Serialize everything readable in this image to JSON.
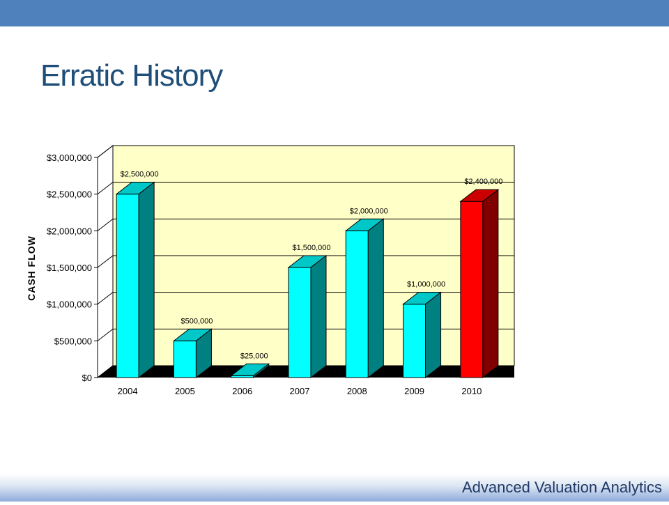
{
  "slide": {
    "title": "Erratic History",
    "footer": "Advanced Valuation Analytics"
  },
  "colors": {
    "header_bar": "#4f81bd",
    "plot_background": "#ffffc8",
    "bar_face": "#00ffff",
    "bar_side": "#008080",
    "highlight_face": "#ff0000",
    "highlight_side": "#800000",
    "floor": "#000000"
  },
  "chart_data": {
    "type": "bar",
    "title": "",
    "xlabel": "",
    "ylabel": "CASH FLOW",
    "categories": [
      "2004",
      "2005",
      "2006",
      "2007",
      "2008",
      "2009",
      "2010"
    ],
    "values": [
      2500000,
      500000,
      25000,
      1500000,
      2000000,
      1000000,
      2400000
    ],
    "data_labels": [
      "$2,500,000",
      "$500,000",
      "$25,000",
      "$1,500,000",
      "$2,000,000",
      "$1,000,000",
      "$2,400,000"
    ],
    "highlight_category": "2010",
    "ylim": [
      0,
      3000000
    ],
    "y_ticks": [
      0,
      500000,
      1000000,
      1500000,
      2000000,
      2500000,
      3000000
    ],
    "y_tick_labels": [
      "$0",
      "$500,000",
      "$1,000,000",
      "$1,500,000",
      "$2,000,000",
      "$2,500,000",
      "$3,000,000"
    ],
    "grid": true,
    "legend": "none",
    "style": "3d-column"
  }
}
